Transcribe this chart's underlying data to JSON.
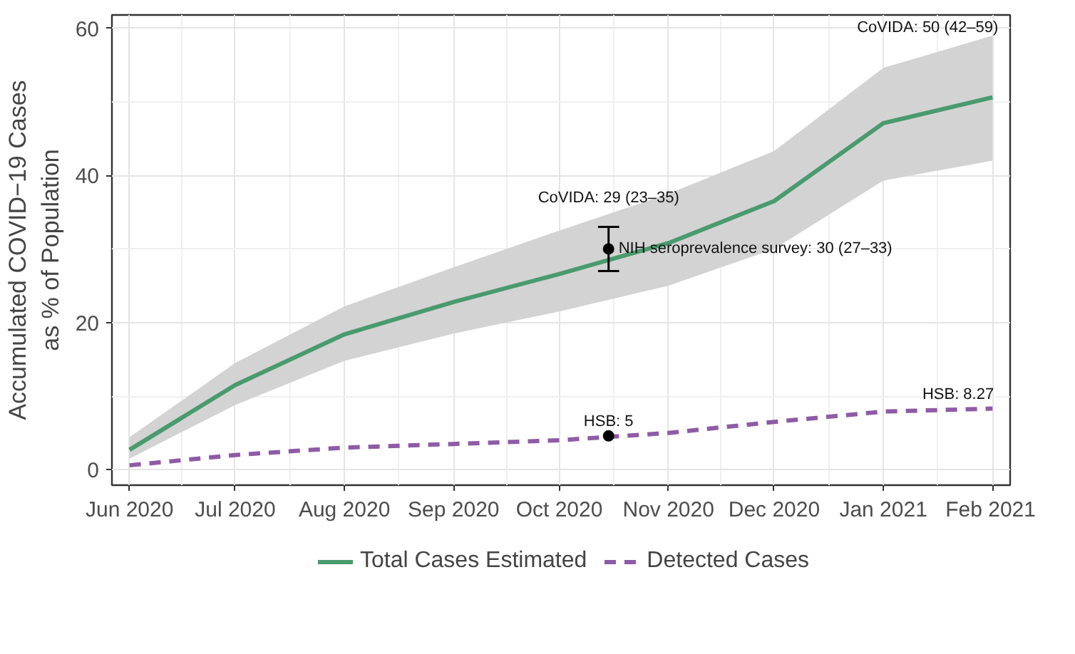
{
  "chart_data": {
    "type": "line",
    "ylabel": "Accumulated COVID−19 Cases\nas % of Population",
    "x": [
      "2020-06-01",
      "2020-07-01",
      "2020-08-01",
      "2020-09-01",
      "2020-10-01",
      "2020-11-01",
      "2020-12-01",
      "2021-01-01",
      "2021-02-01"
    ],
    "series": [
      {
        "name": "Total Cases Estimated",
        "color": "#4a9a6f",
        "line_style": "solid",
        "values": [
          2.7,
          11.5,
          18.4,
          22.8,
          26.6,
          30.8,
          36.5,
          47.1,
          50.6
        ],
        "lower": [
          1.5,
          8.8,
          14.8,
          18.5,
          21.5,
          25.0,
          30.0,
          39.3,
          42.0
        ],
        "upper": [
          4.4,
          14.5,
          22.2,
          27.5,
          32.5,
          37.5,
          43.3,
          54.6,
          59.0
        ]
      },
      {
        "name": "Detected Cases",
        "color": "#8e5ba6",
        "line_style": "dashed",
        "values": [
          0.6,
          2.0,
          3.0,
          3.5,
          4.0,
          5.0,
          6.5,
          7.9,
          8.3
        ]
      },
      {
        "type": "scatter",
        "marker": "circle",
        "color": "#000000",
        "x": [
          "2020-10-15"
        ],
        "values": [
          30
        ],
        "errors": [
          [
            27,
            33
          ]
        ]
      },
      {
        "type": "scatter",
        "marker": "circle",
        "color": "#000000",
        "x": [
          "2020-10-15"
        ],
        "values": [
          4.6
        ]
      }
    ],
    "annotations": [
      {
        "text": "CoVIDA: 29 (23–35)",
        "x": "2020-10-15",
        "y": 33
      },
      {
        "text": "NIH seroprevalence survey: 30 (27–33)",
        "x": "2020-10-15",
        "y": 30
      },
      {
        "text": "HSB: 5",
        "x": "2020-10-15",
        "y": 4.6
      },
      {
        "text": "CoVIDA: 50 (42–59)",
        "x": "2021-02-01",
        "y": 59
      },
      {
        "text": "HSB:  8.27",
        "x": "2021-02-01",
        "y": 8.3
      }
    ],
    "xlim": [
      "2020-05-27",
      "2021-02-06"
    ],
    "xticks": [
      {
        "value": "2020-06-01",
        "label": "Jun 2020"
      },
      {
        "value": "2020-07-01",
        "label": "Jul 2020"
      },
      {
        "value": "2020-08-01",
        "label": "Aug 2020"
      },
      {
        "value": "2020-09-01",
        "label": "Sep 2020"
      },
      {
        "value": "2020-10-01",
        "label": "Oct 2020"
      },
      {
        "value": "2020-11-01",
        "label": "Nov 2020"
      },
      {
        "value": "2020-12-01",
        "label": "Dec 2020"
      },
      {
        "value": "2021-01-01",
        "label": "Jan 2021"
      },
      {
        "value": "2021-02-01",
        "label": "Feb 2021"
      }
    ],
    "ylim": [
      -2.1,
      61.8
    ],
    "yticks": [
      0,
      20,
      40,
      60
    ],
    "grid": true,
    "legend": "bottom",
    "marker": "none"
  }
}
